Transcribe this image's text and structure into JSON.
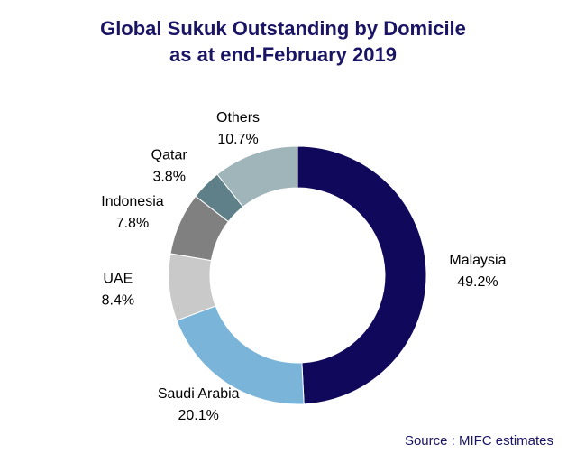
{
  "chart_data": {
    "type": "donut",
    "title": "Global Sukuk Outstanding by Domicile",
    "subtitle": "as at end-February 2019",
    "categories": [
      "Malaysia",
      "Saudi Arabia",
      "UAE",
      "Indonesia",
      "Qatar",
      "Others"
    ],
    "values": [
      49.2,
      20.1,
      8.4,
      7.8,
      3.8,
      10.7
    ],
    "value_labels": [
      "49.2%",
      "20.1%",
      "8.4%",
      "7.8%",
      "3.8%",
      "10.7%"
    ],
    "colors": [
      "#10085a",
      "#7ab4d8",
      "#c9c9c9",
      "#808080",
      "#5f8088",
      "#9fb5b9"
    ],
    "source": "Source : MIFC estimates"
  }
}
